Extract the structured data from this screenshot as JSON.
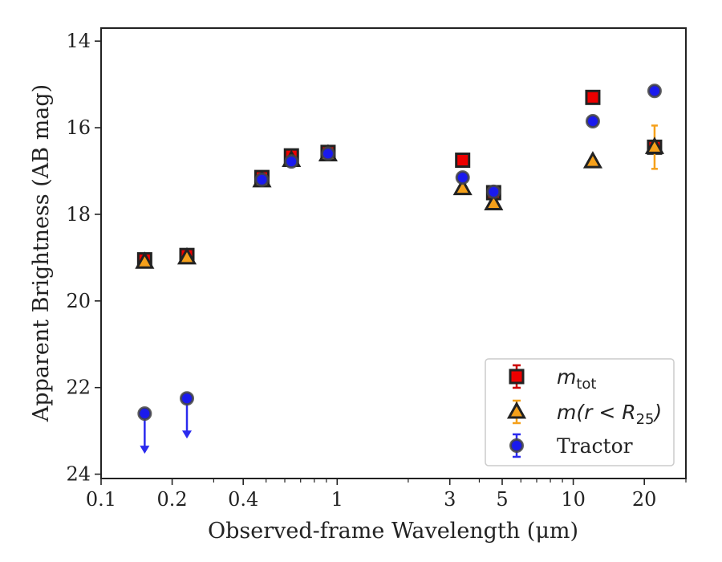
{
  "chart_data": {
    "type": "scatter",
    "xscale": "log",
    "y_inverted": true,
    "xlabel": "Observed-frame Wavelength (μm)",
    "ylabel": "Apparent Brightness (AB mag)",
    "xlim": [
      0.1,
      30
    ],
    "ylim": [
      24.1,
      13.7
    ],
    "x_ticks": [
      {
        "value": 0.1,
        "label": "0.1"
      },
      {
        "value": 0.2,
        "label": "0.2"
      },
      {
        "value": 0.4,
        "label": "0.4"
      },
      {
        "value": 1,
        "label": "1"
      },
      {
        "value": 3,
        "label": "3"
      },
      {
        "value": 5,
        "label": "5"
      },
      {
        "value": 10,
        "label": "10"
      },
      {
        "value": 20,
        "label": "20"
      }
    ],
    "y_ticks": [
      {
        "value": 14,
        "label": "14"
      },
      {
        "value": 16,
        "label": "16"
      },
      {
        "value": 18,
        "label": "18"
      },
      {
        "value": 20,
        "label": "20"
      },
      {
        "value": 22,
        "label": "22"
      },
      {
        "value": 24,
        "label": "24"
      }
    ],
    "grid": false,
    "legend_position": "lower-right",
    "series": [
      {
        "name": "m_tot",
        "label_main": "m",
        "label_sub": "tot",
        "marker": "square",
        "color": "#ee0000",
        "errcolor": "#cc0000",
        "points": [
          {
            "x": 0.153,
            "y": 19.05,
            "err": 0.1
          },
          {
            "x": 0.231,
            "y": 18.95,
            "err": 0.1
          },
          {
            "x": 0.48,
            "y": 17.15,
            "err": 0.08
          },
          {
            "x": 0.64,
            "y": 16.65,
            "err": 0.08
          },
          {
            "x": 0.915,
            "y": 16.57,
            "err": 0.08
          },
          {
            "x": 3.4,
            "y": 16.75,
            "err": 0.06
          },
          {
            "x": 4.6,
            "y": 17.5,
            "err": 0.08
          },
          {
            "x": 12.1,
            "y": 15.3,
            "err": 0.05
          },
          {
            "x": 22.1,
            "y": 16.45,
            "err": 0.08
          }
        ]
      },
      {
        "name": "m(r < R25)",
        "label_main": "m(r < R",
        "label_sub": "25",
        "label_tail": ")",
        "marker": "triangle",
        "color": "#f5a01a",
        "errcolor": "#f5a01a",
        "points": [
          {
            "x": 0.153,
            "y": 19.1,
            "err": 0.08
          },
          {
            "x": 0.231,
            "y": 19.0,
            "err": 0.08
          },
          {
            "x": 0.48,
            "y": 17.22,
            "err": 0.06
          },
          {
            "x": 0.64,
            "y": 16.75,
            "err": 0.06
          },
          {
            "x": 0.915,
            "y": 16.62,
            "err": 0.06
          },
          {
            "x": 3.4,
            "y": 17.4,
            "err": 0.06
          },
          {
            "x": 4.6,
            "y": 17.75,
            "err": 0.08
          },
          {
            "x": 12.1,
            "y": 16.78,
            "err": 0.1
          },
          {
            "x": 22.1,
            "y": 16.45,
            "err": 0.5
          }
        ]
      },
      {
        "name": "Tractor",
        "label_main": "Tractor",
        "marker": "circle",
        "color": "#1a1aee",
        "errcolor": "#2a2aee",
        "points": [
          {
            "x": 0.153,
            "y": 22.6,
            "upper_limit": true
          },
          {
            "x": 0.231,
            "y": 22.25,
            "upper_limit": true
          },
          {
            "x": 0.48,
            "y": 17.2,
            "err": 0.05
          },
          {
            "x": 0.64,
            "y": 16.78,
            "err": 0.05
          },
          {
            "x": 0.915,
            "y": 16.6,
            "err": 0.05
          },
          {
            "x": 3.4,
            "y": 17.15,
            "err": 0.04
          },
          {
            "x": 4.6,
            "y": 17.48,
            "err": 0.05
          },
          {
            "x": 12.1,
            "y": 15.85,
            "err": 0.04
          },
          {
            "x": 22.1,
            "y": 15.15,
            "err": 0.06
          }
        ]
      }
    ]
  }
}
